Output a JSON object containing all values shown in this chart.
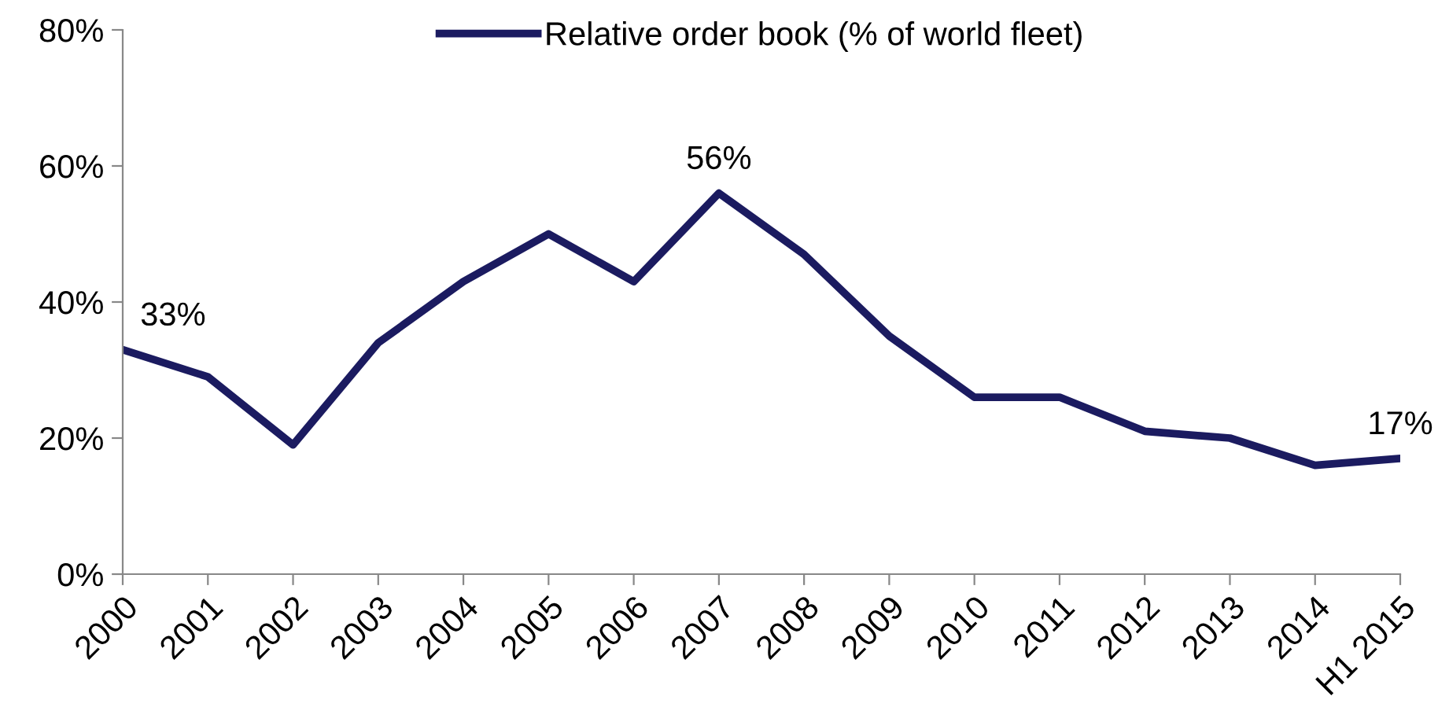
{
  "chart_data": {
    "type": "line",
    "categories": [
      "2000",
      "2001",
      "2002",
      "2003",
      "2004",
      "2005",
      "2006",
      "2007",
      "2008",
      "2009",
      "2010",
      "2011",
      "2012",
      "2013",
      "2014",
      "H1 2015"
    ],
    "series": [
      {
        "name": "Relative order book (% of world fleet)",
        "color": "#1b1b60",
        "values": [
          33,
          29,
          19,
          34,
          43,
          50,
          43,
          56,
          47,
          35,
          26,
          26,
          21,
          20,
          16,
          17
        ],
        "value_labels": [
          "33%",
          null,
          null,
          null,
          null,
          null,
          null,
          "56%",
          null,
          null,
          null,
          null,
          null,
          null,
          null,
          "17%"
        ]
      }
    ],
    "ylim": [
      0,
      80
    ],
    "yticks": [
      {
        "value": 0,
        "label": "0%"
      },
      {
        "value": 20,
        "label": "20%"
      },
      {
        "value": 40,
        "label": "40%"
      },
      {
        "value": 60,
        "label": "60%"
      },
      {
        "value": 80,
        "label": "80%"
      }
    ],
    "grid": false,
    "legend": "top",
    "marker": "none",
    "line_style": "solid"
  }
}
